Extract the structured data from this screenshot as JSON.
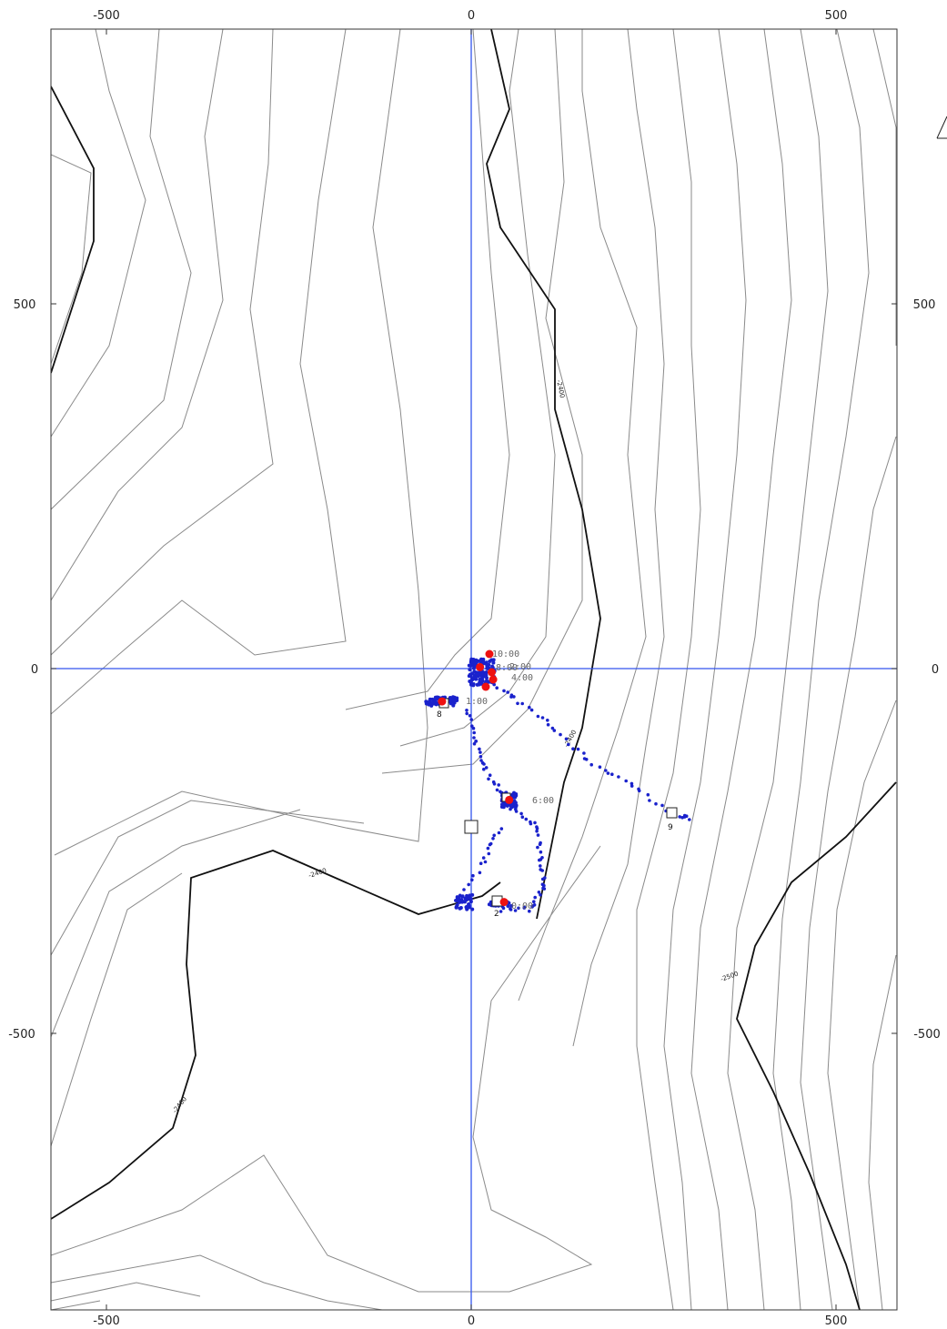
{
  "map": {
    "x_ticks": [
      "-500",
      "0",
      "500"
    ],
    "y_ticks": [
      "500",
      "0",
      "-500"
    ],
    "contour_labels": [
      "-2400",
      "-2400",
      "-2400",
      "-2500",
      "-2400"
    ],
    "time_labels": [
      "10:00",
      "8:00",
      "4:00",
      "2:00",
      "1:00",
      "6:00",
      "0:00"
    ],
    "station_labels": [
      "8",
      "2",
      "9"
    ],
    "colors": {
      "axis_line": "#3355ee",
      "track": "#1a22cc",
      "fix": "#ee1111",
      "contour_major": "#111111",
      "contour_minor": "#8a8a8a"
    },
    "corner_mark_icon": "partial-north-arrow-icon"
  },
  "chart_data": {
    "type": "scatter",
    "xlim": [
      -575,
      580
    ],
    "ylim": [
      -875,
      880
    ],
    "grid": false,
    "axis_lines": [
      0,
      0
    ],
    "contour_interval_note": "major contours labeled -2400 and -2500",
    "fixes": [
      [
        25,
        20
      ],
      [
        12,
        2
      ],
      [
        28,
        -5
      ],
      [
        30,
        -15
      ],
      [
        20,
        -25
      ],
      [
        -40,
        -45
      ],
      [
        52,
        -180
      ],
      [
        45,
        -320
      ]
    ],
    "stations": [
      {
        "label": "8",
        "x": -38,
        "y": -48
      },
      {
        "label": "",
        "x": 0,
        "y": -215
      },
      {
        "label": "2",
        "x": 35,
        "y": -320
      },
      {
        "label": "9",
        "x": 275,
        "y": -200
      },
      {
        "label": "",
        "x": 47,
        "y": -178
      }
    ]
  }
}
